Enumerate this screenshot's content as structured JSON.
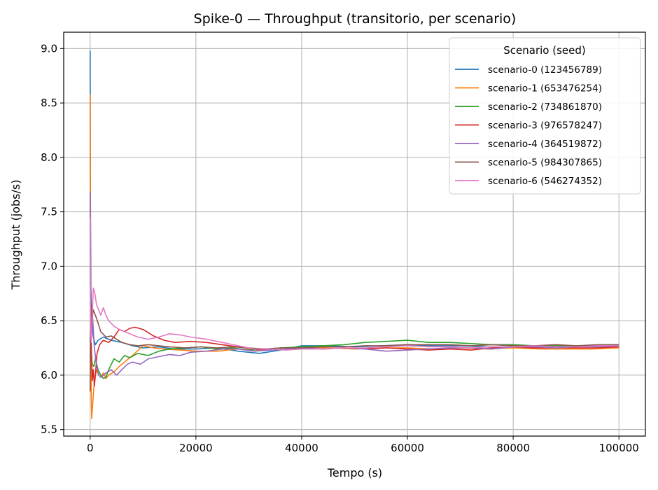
{
  "chart_data": {
    "type": "line",
    "title": "Spike-0 — Throughput (transitorio, per scenario)",
    "xlabel": "Tempo (s)",
    "ylabel": "Throughput (jobs/s)",
    "xlim": [
      -5000,
      105000
    ],
    "ylim": [
      5.44,
      9.15
    ],
    "xticks": [
      0,
      20000,
      40000,
      60000,
      80000,
      100000
    ],
    "xtick_labels": [
      "0",
      "20000",
      "40000",
      "60000",
      "80000",
      "100000"
    ],
    "yticks": [
      5.5,
      6.0,
      6.5,
      7.0,
      7.5,
      8.0,
      8.5,
      9.0
    ],
    "ytick_labels": [
      "5.5",
      "6.0",
      "6.5",
      "7.0",
      "7.5",
      "8.0",
      "8.5",
      "9.0"
    ],
    "grid": true,
    "legend": {
      "title": "Scenario (seed)",
      "placement": "top-right"
    },
    "series": [
      {
        "name": "scenario-0 (123456789)",
        "color": "#1f77b4",
        "points": [
          [
            0,
            8.98
          ],
          [
            60,
            7.6
          ],
          [
            150,
            6.8
          ],
          [
            300,
            6.5
          ],
          [
            600,
            6.35
          ],
          [
            1000,
            6.28
          ],
          [
            1500,
            6.32
          ],
          [
            2500,
            6.35
          ],
          [
            4000,
            6.32
          ],
          [
            6000,
            6.3
          ],
          [
            8000,
            6.27
          ],
          [
            10000,
            6.25
          ],
          [
            13000,
            6.26
          ],
          [
            16000,
            6.24
          ],
          [
            20000,
            6.24
          ],
          [
            24000,
            6.25
          ],
          [
            28000,
            6.22
          ],
          [
            32000,
            6.2
          ],
          [
            36000,
            6.23
          ],
          [
            40000,
            6.27
          ],
          [
            45000,
            6.27
          ],
          [
            50000,
            6.26
          ],
          [
            55000,
            6.27
          ],
          [
            60000,
            6.28
          ],
          [
            65000,
            6.27
          ],
          [
            70000,
            6.27
          ],
          [
            75000,
            6.26
          ],
          [
            80000,
            6.26
          ],
          [
            85000,
            6.26
          ],
          [
            90000,
            6.27
          ],
          [
            95000,
            6.27
          ],
          [
            100000,
            6.28
          ]
        ]
      },
      {
        "name": "scenario-1 (653476254)",
        "color": "#ff7f0e",
        "points": [
          [
            0,
            8.58
          ],
          [
            50,
            7.2
          ],
          [
            120,
            6.4
          ],
          [
            200,
            5.85
          ],
          [
            300,
            5.6
          ],
          [
            500,
            5.75
          ],
          [
            800,
            5.95
          ],
          [
            1200,
            6.05
          ],
          [
            1600,
            6.0
          ],
          [
            2000,
            5.98
          ],
          [
            2500,
            6.02
          ],
          [
            3000,
            5.97
          ],
          [
            3500,
            6.0
          ],
          [
            4500,
            6.03
          ],
          [
            5500,
            6.08
          ],
          [
            6500,
            6.12
          ],
          [
            8000,
            6.18
          ],
          [
            10000,
            6.27
          ],
          [
            12000,
            6.25
          ],
          [
            14000,
            6.24
          ],
          [
            17000,
            6.23
          ],
          [
            20000,
            6.22
          ],
          [
            24000,
            6.22
          ],
          [
            28000,
            6.24
          ],
          [
            32000,
            6.23
          ],
          [
            36000,
            6.25
          ],
          [
            40000,
            6.26
          ],
          [
            45000,
            6.25
          ],
          [
            50000,
            6.24
          ],
          [
            55000,
            6.25
          ],
          [
            60000,
            6.25
          ],
          [
            65000,
            6.24
          ],
          [
            70000,
            6.25
          ],
          [
            75000,
            6.24
          ],
          [
            80000,
            6.25
          ],
          [
            85000,
            6.24
          ],
          [
            90000,
            6.24
          ],
          [
            95000,
            6.24
          ],
          [
            100000,
            6.25
          ]
        ]
      },
      {
        "name": "scenario-2 (734861870)",
        "color": "#2ca02c",
        "points": [
          [
            0,
            7.2
          ],
          [
            80,
            6.5
          ],
          [
            200,
            6.2
          ],
          [
            400,
            6.1
          ],
          [
            700,
            6.08
          ],
          [
            1000,
            6.15
          ],
          [
            1500,
            6.05
          ],
          [
            2000,
            6.0
          ],
          [
            2500,
            5.97
          ],
          [
            3000,
            5.98
          ],
          [
            3500,
            6.05
          ],
          [
            4500,
            6.15
          ],
          [
            5500,
            6.12
          ],
          [
            6500,
            6.18
          ],
          [
            7500,
            6.16
          ],
          [
            9000,
            6.2
          ],
          [
            11000,
            6.18
          ],
          [
            13000,
            6.22
          ],
          [
            15000,
            6.24
          ],
          [
            18000,
            6.25
          ],
          [
            21000,
            6.26
          ],
          [
            24000,
            6.24
          ],
          [
            27000,
            6.25
          ],
          [
            30000,
            6.23
          ],
          [
            33000,
            6.24
          ],
          [
            36000,
            6.25
          ],
          [
            40000,
            6.26
          ],
          [
            44000,
            6.27
          ],
          [
            48000,
            6.28
          ],
          [
            52000,
            6.3
          ],
          [
            56000,
            6.31
          ],
          [
            60000,
            6.32
          ],
          [
            64000,
            6.3
          ],
          [
            68000,
            6.3
          ],
          [
            72000,
            6.29
          ],
          [
            76000,
            6.28
          ],
          [
            80000,
            6.28
          ],
          [
            84000,
            6.27
          ],
          [
            88000,
            6.27
          ],
          [
            92000,
            6.27
          ],
          [
            96000,
            6.26
          ],
          [
            100000,
            6.26
          ]
        ]
      },
      {
        "name": "scenario-3 (976578247)",
        "color": "#d62728",
        "points": [
          [
            0,
            6.3
          ],
          [
            100,
            6.5
          ],
          [
            250,
            6.2
          ],
          [
            400,
            5.95
          ],
          [
            600,
            6.05
          ],
          [
            800,
            5.9
          ],
          [
            1000,
            6.0
          ],
          [
            1300,
            6.2
          ],
          [
            1800,
            6.28
          ],
          [
            2500,
            6.32
          ],
          [
            3500,
            6.3
          ],
          [
            4500,
            6.35
          ],
          [
            5500,
            6.42
          ],
          [
            6500,
            6.4
          ],
          [
            7500,
            6.43
          ],
          [
            8500,
            6.44
          ],
          [
            10000,
            6.42
          ],
          [
            12000,
            6.36
          ],
          [
            14000,
            6.32
          ],
          [
            16000,
            6.3
          ],
          [
            19000,
            6.31
          ],
          [
            22000,
            6.3
          ],
          [
            25000,
            6.28
          ],
          [
            28000,
            6.26
          ],
          [
            31000,
            6.24
          ],
          [
            34000,
            6.23
          ],
          [
            37000,
            6.24
          ],
          [
            40000,
            6.25
          ],
          [
            44000,
            6.24
          ],
          [
            48000,
            6.25
          ],
          [
            52000,
            6.24
          ],
          [
            56000,
            6.25
          ],
          [
            60000,
            6.24
          ],
          [
            64000,
            6.23
          ],
          [
            68000,
            6.24
          ],
          [
            72000,
            6.23
          ],
          [
            76000,
            6.25
          ],
          [
            80000,
            6.26
          ],
          [
            84000,
            6.25
          ],
          [
            88000,
            6.25
          ],
          [
            92000,
            6.25
          ],
          [
            96000,
            6.25
          ],
          [
            100000,
            6.26
          ]
        ]
      },
      {
        "name": "scenario-4 (364519872)",
        "color": "#9467bd",
        "points": [
          [
            0,
            7.68
          ],
          [
            60,
            6.9
          ],
          [
            150,
            6.6
          ],
          [
            300,
            6.65
          ],
          [
            500,
            6.5
          ],
          [
            800,
            6.25
          ],
          [
            1200,
            6.1
          ],
          [
            1600,
            6.0
          ],
          [
            2000,
            5.98
          ],
          [
            2500,
            6.0
          ],
          [
            3000,
            6.02
          ],
          [
            4000,
            6.05
          ],
          [
            5000,
            6.0
          ],
          [
            6000,
            6.05
          ],
          [
            7000,
            6.1
          ],
          [
            8000,
            6.12
          ],
          [
            9500,
            6.1
          ],
          [
            11000,
            6.15
          ],
          [
            13000,
            6.17
          ],
          [
            15000,
            6.19
          ],
          [
            17000,
            6.18
          ],
          [
            19000,
            6.21
          ],
          [
            22000,
            6.22
          ],
          [
            25000,
            6.24
          ],
          [
            28000,
            6.24
          ],
          [
            31000,
            6.22
          ],
          [
            34000,
            6.23
          ],
          [
            37000,
            6.24
          ],
          [
            40000,
            6.25
          ],
          [
            44000,
            6.24
          ],
          [
            48000,
            6.25
          ],
          [
            52000,
            6.24
          ],
          [
            56000,
            6.22
          ],
          [
            60000,
            6.23
          ],
          [
            64000,
            6.24
          ],
          [
            68000,
            6.25
          ],
          [
            72000,
            6.25
          ],
          [
            76000,
            6.24
          ],
          [
            80000,
            6.26
          ],
          [
            84000,
            6.26
          ],
          [
            88000,
            6.25
          ],
          [
            92000,
            6.26
          ],
          [
            96000,
            6.26
          ],
          [
            100000,
            6.27
          ]
        ]
      },
      {
        "name": "scenario-5 (984307865)",
        "color": "#8c564b",
        "points": [
          [
            0,
            5.85
          ],
          [
            80,
            6.7
          ],
          [
            200,
            6.6
          ],
          [
            350,
            6.5
          ],
          [
            600,
            6.6
          ],
          [
            1000,
            6.55
          ],
          [
            1500,
            6.48
          ],
          [
            2000,
            6.4
          ],
          [
            3000,
            6.35
          ],
          [
            4000,
            6.36
          ],
          [
            5000,
            6.33
          ],
          [
            6000,
            6.3
          ],
          [
            7500,
            6.28
          ],
          [
            9000,
            6.27
          ],
          [
            11000,
            6.28
          ],
          [
            13000,
            6.27
          ],
          [
            15000,
            6.26
          ],
          [
            18000,
            6.25
          ],
          [
            21000,
            6.26
          ],
          [
            24000,
            6.25
          ],
          [
            27000,
            6.26
          ],
          [
            30000,
            6.25
          ],
          [
            33000,
            6.24
          ],
          [
            36000,
            6.25
          ],
          [
            40000,
            6.25
          ],
          [
            44000,
            6.26
          ],
          [
            48000,
            6.26
          ],
          [
            52000,
            6.27
          ],
          [
            56000,
            6.27
          ],
          [
            60000,
            6.28
          ],
          [
            64000,
            6.28
          ],
          [
            68000,
            6.28
          ],
          [
            72000,
            6.27
          ],
          [
            76000,
            6.28
          ],
          [
            80000,
            6.27
          ],
          [
            84000,
            6.27
          ],
          [
            88000,
            6.28
          ],
          [
            92000,
            6.27
          ],
          [
            96000,
            6.28
          ],
          [
            100000,
            6.28
          ]
        ]
      },
      {
        "name": "scenario-6 (546274352)",
        "color": "#e377c2",
        "points": [
          [
            0,
            7.45
          ],
          [
            80,
            6.4
          ],
          [
            200,
            6.3
          ],
          [
            400,
            6.55
          ],
          [
            600,
            6.8
          ],
          [
            900,
            6.75
          ],
          [
            1200,
            6.65
          ],
          [
            1600,
            6.6
          ],
          [
            2000,
            6.55
          ],
          [
            2500,
            6.62
          ],
          [
            3000,
            6.55
          ],
          [
            3500,
            6.5
          ],
          [
            4500,
            6.45
          ],
          [
            5500,
            6.42
          ],
          [
            6500,
            6.4
          ],
          [
            7500,
            6.38
          ],
          [
            9000,
            6.35
          ],
          [
            11000,
            6.33
          ],
          [
            13000,
            6.35
          ],
          [
            15000,
            6.38
          ],
          [
            17000,
            6.37
          ],
          [
            19000,
            6.35
          ],
          [
            22000,
            6.33
          ],
          [
            25000,
            6.3
          ],
          [
            28000,
            6.27
          ],
          [
            31000,
            6.24
          ],
          [
            34000,
            6.24
          ],
          [
            37000,
            6.23
          ],
          [
            40000,
            6.24
          ],
          [
            44000,
            6.24
          ],
          [
            48000,
            6.25
          ],
          [
            52000,
            6.25
          ],
          [
            56000,
            6.26
          ],
          [
            60000,
            6.27
          ],
          [
            64000,
            6.26
          ],
          [
            68000,
            6.26
          ],
          [
            72000,
            6.25
          ],
          [
            76000,
            6.26
          ],
          [
            80000,
            6.26
          ],
          [
            84000,
            6.27
          ],
          [
            88000,
            6.26
          ],
          [
            92000,
            6.26
          ],
          [
            96000,
            6.27
          ],
          [
            100000,
            6.27
          ]
        ]
      }
    ]
  }
}
